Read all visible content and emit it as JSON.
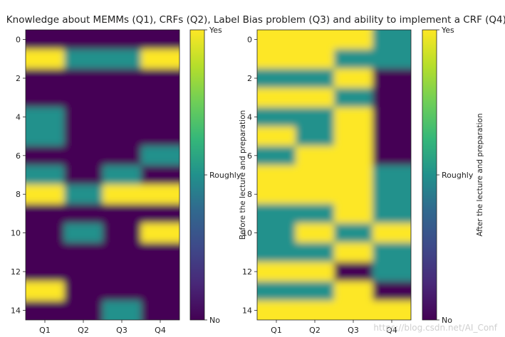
{
  "chart_data": [
    {
      "type": "heatmap",
      "title": "Knowledge about MEMMs (Q1), CRFs (Q2), Label Bias problem (Q3) and ability to implement a CRF (Q4).",
      "x_categories": [
        "Q1",
        "Q2",
        "Q3",
        "Q4"
      ],
      "y_ticks": [
        0,
        2,
        4,
        6,
        8,
        10,
        12,
        14
      ],
      "ylim": [
        -0.5,
        14.5
      ],
      "vlim": [
        0,
        2
      ],
      "colorbar": {
        "ticks": [
          0,
          1,
          2
        ],
        "labels": [
          "No",
          "Roughly",
          "Yes"
        ]
      },
      "colormap": "viridis",
      "interpolation": "smooth",
      "ylabel": "Before the lecture and preparation",
      "values": [
        [
          0,
          0,
          0,
          0
        ],
        [
          2,
          1,
          1,
          2
        ],
        [
          0,
          0,
          0,
          0
        ],
        [
          0,
          0,
          0,
          0
        ],
        [
          1,
          0,
          0,
          0
        ],
        [
          1,
          0,
          0,
          0
        ],
        [
          0,
          0,
          0,
          1
        ],
        [
          1,
          0,
          1,
          0
        ],
        [
          2,
          1,
          2,
          2
        ],
        [
          0,
          0,
          0,
          0
        ],
        [
          0,
          1,
          0,
          2
        ],
        [
          0,
          0,
          0,
          0
        ],
        [
          0,
          0,
          0,
          0
        ],
        [
          2,
          0,
          0,
          0
        ],
        [
          0,
          0,
          1,
          0
        ]
      ]
    },
    {
      "type": "heatmap",
      "x_categories": [
        "Q1",
        "Q2",
        "Q3",
        "Q4"
      ],
      "y_ticks": [
        0,
        2,
        4,
        6,
        8,
        10,
        12,
        14
      ],
      "ylim": [
        -0.5,
        14.5
      ],
      "vlim": [
        0,
        2
      ],
      "colorbar": {
        "ticks": [
          0,
          1,
          2
        ],
        "labels": [
          "No",
          "Roughly",
          "Yes"
        ]
      },
      "colormap": "viridis",
      "interpolation": "smooth",
      "ylabel": "After the lecture and preparation",
      "values": [
        [
          2,
          2,
          2,
          1
        ],
        [
          2,
          2,
          1,
          1
        ],
        [
          1,
          1,
          2,
          0
        ],
        [
          2,
          2,
          1,
          0
        ],
        [
          1,
          1,
          2,
          0
        ],
        [
          2,
          1,
          2,
          0
        ],
        [
          1,
          2,
          2,
          0
        ],
        [
          2,
          2,
          2,
          1
        ],
        [
          2,
          2,
          2,
          1
        ],
        [
          1,
          1,
          2,
          1
        ],
        [
          1,
          2,
          1,
          2
        ],
        [
          1,
          1,
          2,
          1
        ],
        [
          2,
          2,
          0,
          1
        ],
        [
          1,
          1,
          2,
          0
        ],
        [
          2,
          2,
          2,
          2
        ]
      ]
    }
  ],
  "watermark": "https://blog.csdn.net/AI_Conf"
}
